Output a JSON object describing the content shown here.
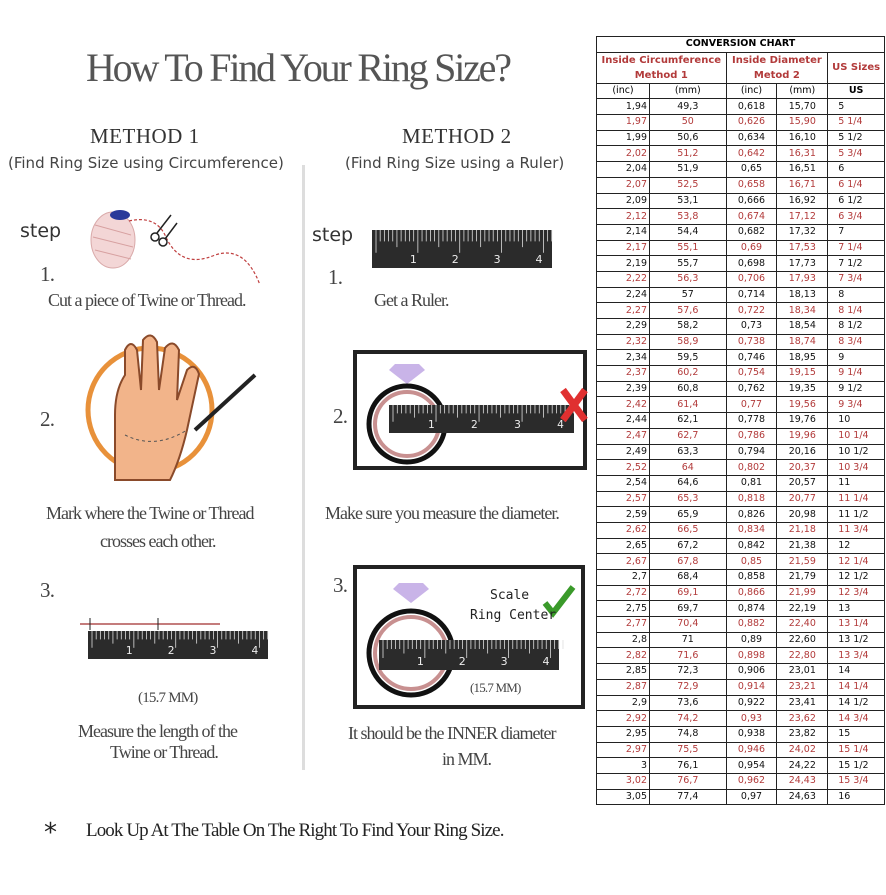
{
  "title": "How To Find Your Ring Size?",
  "method1": {
    "heading": "METHOD 1",
    "subtitle": "(Find Ring Size using Circumference)",
    "step_label": "step",
    "steps": [
      {
        "num": "1.",
        "lines": [
          "Cut a piece of  Twine or Thread."
        ]
      },
      {
        "num": "2.",
        "lines": [
          "Mark where the Twine or Thread",
          "crosses each other."
        ]
      },
      {
        "num": "3.",
        "measure": "(15.7 MM)",
        "lines": [
          "Measure the length of the",
          "Twine or Thread."
        ]
      }
    ]
  },
  "method2": {
    "heading": "METHOD 2",
    "subtitle": "(Find Ring Size using a Ruler)",
    "step_label": "step",
    "steps": [
      {
        "num": "1.",
        "lines": [
          "Get a Ruler."
        ]
      },
      {
        "num": "2.",
        "lines": [
          "Make sure you measure the diameter."
        ]
      },
      {
        "num": "3.",
        "scale_label": "Scale",
        "center_label": "Ring Center",
        "measure": "(15.7 MM)",
        "lines": [
          "It should be the INNER diameter",
          "in MM."
        ]
      }
    ]
  },
  "ruler_numbers": [
    "1",
    "2",
    "3",
    "4"
  ],
  "icons": {
    "step1_m1": "twine-spool-scissors-icon",
    "step2_m1": "hand-ring-icon",
    "step2_m2_mark": "red-x-icon",
    "step3_m2_mark": "green-check-icon",
    "diamond": "diamond-icon"
  },
  "colors": {
    "accent_red": "#b23a3a",
    "check_green": "#3a9a2a",
    "x_red": "#e03030",
    "ring_pink": "#c89090"
  },
  "footer": {
    "bullet": "*",
    "text": "Look Up At The Table On The Right To Find Your Ring Size."
  },
  "table": {
    "title": "CONVERSION CHART",
    "group_headers": [
      "Inside Circumference",
      "Method 1",
      "Inside Diameter",
      "Metod 2",
      "US Sizes"
    ],
    "units": [
      "(inc)",
      "(mm)",
      "(inc)",
      "(mm)",
      "US"
    ],
    "rows": [
      [
        "1,94",
        "49,3",
        "0,618",
        "15,70",
        "5"
      ],
      [
        "1,97",
        "50",
        "0,626",
        "15,90",
        "5 1/4"
      ],
      [
        "1,99",
        "50,6",
        "0,634",
        "16,10",
        "5 1/2"
      ],
      [
        "2,02",
        "51,2",
        "0,642",
        "16,31",
        "5 3/4"
      ],
      [
        "2,04",
        "51,9",
        "0,65",
        "16,51",
        "6"
      ],
      [
        "2,07",
        "52,5",
        "0,658",
        "16,71",
        "6 1/4"
      ],
      [
        "2,09",
        "53,1",
        "0,666",
        "16,92",
        "6 1/2"
      ],
      [
        "2,12",
        "53,8",
        "0,674",
        "17,12",
        "6 3/4"
      ],
      [
        "2,14",
        "54,4",
        "0,682",
        "17,32",
        "7"
      ],
      [
        "2,17",
        "55,1",
        "0,69",
        "17,53",
        "7 1/4"
      ],
      [
        "2,19",
        "55,7",
        "0,698",
        "17,73",
        "7 1/2"
      ],
      [
        "2,22",
        "56,3",
        "0,706",
        "17,93",
        "7 3/4"
      ],
      [
        "2,24",
        "57",
        "0,714",
        "18,13",
        "8"
      ],
      [
        "2,27",
        "57,6",
        "0,722",
        "18,34",
        "8 1/4"
      ],
      [
        "2,29",
        "58,2",
        "0,73",
        "18,54",
        "8 1/2"
      ],
      [
        "2,32",
        "58,9",
        "0,738",
        "18,74",
        "8 3/4"
      ],
      [
        "2,34",
        "59,5",
        "0,746",
        "18,95",
        "9"
      ],
      [
        "2,37",
        "60,2",
        "0,754",
        "19,15",
        "9 1/4"
      ],
      [
        "2,39",
        "60,8",
        "0,762",
        "19,35",
        "9 1/2"
      ],
      [
        "2,42",
        "61,4",
        "0,77",
        "19,56",
        "9 3/4"
      ],
      [
        "2,44",
        "62,1",
        "0,778",
        "19,76",
        "10"
      ],
      [
        "2,47",
        "62,7",
        "0,786",
        "19,96",
        "10 1/4"
      ],
      [
        "2,49",
        "63,3",
        "0,794",
        "20,16",
        "10 1/2"
      ],
      [
        "2,52",
        "64",
        "0,802",
        "20,37",
        "10 3/4"
      ],
      [
        "2,54",
        "64,6",
        "0,81",
        "20,57",
        "11"
      ],
      [
        "2,57",
        "65,3",
        "0,818",
        "20,77",
        "11 1/4"
      ],
      [
        "2,59",
        "65,9",
        "0,826",
        "20,98",
        "11 1/2"
      ],
      [
        "2,62",
        "66,5",
        "0,834",
        "21,18",
        "11 3/4"
      ],
      [
        "2,65",
        "67,2",
        "0,842",
        "21,38",
        "12"
      ],
      [
        "2,67",
        "67,8",
        "0,85",
        "21,59",
        "12 1/4"
      ],
      [
        "2,7",
        "68,4",
        "0,858",
        "21,79",
        "12 1/2"
      ],
      [
        "2,72",
        "69,1",
        "0,866",
        "21,99",
        "12 3/4"
      ],
      [
        "2,75",
        "69,7",
        "0,874",
        "22,19",
        "13"
      ],
      [
        "2,77",
        "70,4",
        "0,882",
        "22,40",
        "13 1/4"
      ],
      [
        "2,8",
        "71",
        "0,89",
        "22,60",
        "13 1/2"
      ],
      [
        "2,82",
        "71,6",
        "0,898",
        "22,80",
        "13 3/4"
      ],
      [
        "2,85",
        "72,3",
        "0,906",
        "23,01",
        "14"
      ],
      [
        "2,87",
        "72,9",
        "0,914",
        "23,21",
        "14 1/4"
      ],
      [
        "2,9",
        "73,6",
        "0,922",
        "23,41",
        "14 1/2"
      ],
      [
        "2,92",
        "74,2",
        "0,93",
        "23,62",
        "14 3/4"
      ],
      [
        "2,95",
        "74,8",
        "0,938",
        "23,82",
        "15"
      ],
      [
        "2,97",
        "75,5",
        "0,946",
        "24,02",
        "15 1/4"
      ],
      [
        "3",
        "76,1",
        "0,954",
        "24,22",
        "15 1/2"
      ],
      [
        "3,02",
        "76,7",
        "0,962",
        "24,43",
        "15 3/4"
      ],
      [
        "3,05",
        "77,4",
        "0,97",
        "24,63",
        "16"
      ]
    ]
  }
}
